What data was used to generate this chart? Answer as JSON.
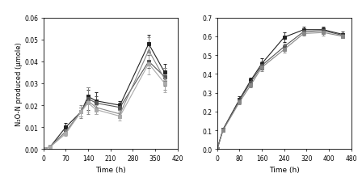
{
  "left": {
    "xlabel": "Time (h)",
    "ylabel": "N₂O-N produced (μmole)",
    "xlim": [
      0,
      420
    ],
    "ylim": [
      0,
      0.06
    ],
    "xticks": [
      0,
      70,
      140,
      210,
      280,
      350,
      420
    ],
    "yticks": [
      0,
      0.01,
      0.02,
      0.03,
      0.04,
      0.05,
      0.06
    ],
    "series": [
      {
        "x": [
          0,
          21,
          70,
          118,
          140,
          165,
          240,
          330,
          380
        ],
        "y": [
          0,
          0.001,
          0.01,
          0.017,
          0.024,
          0.022,
          0.02,
          0.048,
          0.035
        ],
        "yerr": [
          0,
          0.001,
          0.002,
          0.002,
          0.003,
          0.004,
          0.002,
          0.004,
          0.004
        ],
        "marker": "s",
        "filled": true,
        "color": "#222222",
        "linestyle": "-"
      },
      {
        "x": [
          0,
          21,
          70,
          118,
          140,
          165,
          240,
          330,
          380
        ],
        "y": [
          0,
          0.001,
          0.008,
          0.017,
          0.023,
          0.021,
          0.019,
          0.04,
          0.033
        ],
        "yerr": [
          0,
          0.001,
          0.001,
          0.002,
          0.005,
          0.003,
          0.002,
          0.003,
          0.004
        ],
        "marker": "s",
        "filled": true,
        "color": "#555555",
        "linestyle": "-"
      },
      {
        "x": [
          0,
          21,
          70,
          118,
          140,
          165,
          240,
          330,
          380
        ],
        "y": [
          0,
          0.001,
          0.008,
          0.017,
          0.022,
          0.019,
          0.016,
          0.045,
          0.032
        ],
        "yerr": [
          0,
          0.001,
          0.001,
          0.003,
          0.006,
          0.003,
          0.002,
          0.006,
          0.005
        ],
        "marker": "^",
        "filled": false,
        "color": "#888888",
        "linestyle": "-"
      },
      {
        "x": [
          0,
          21,
          70,
          118,
          140,
          165,
          240,
          330,
          380
        ],
        "y": [
          0,
          0.001,
          0.007,
          0.017,
          0.021,
          0.018,
          0.015,
          0.039,
          0.03
        ],
        "yerr": [
          0,
          0.001,
          0.001,
          0.002,
          0.004,
          0.002,
          0.002,
          0.005,
          0.004
        ],
        "marker": "s",
        "filled": true,
        "color": "#aaaaaa",
        "linestyle": "-"
      }
    ]
  },
  "right": {
    "xlabel": "Time (h)",
    "ylabel": "",
    "xlim": [
      0,
      480
    ],
    "ylim": [
      0,
      0.7
    ],
    "xticks": [
      0,
      80,
      160,
      240,
      320,
      400,
      480
    ],
    "yticks": [
      0,
      0.1,
      0.2,
      0.3,
      0.4,
      0.5,
      0.6,
      0.7
    ],
    "series": [
      {
        "x": [
          0,
          21,
          80,
          120,
          160,
          240,
          310,
          380,
          450
        ],
        "y": [
          0,
          0.105,
          0.265,
          0.365,
          0.455,
          0.595,
          0.635,
          0.635,
          0.61
        ],
        "yerr": [
          0,
          0.005,
          0.015,
          0.015,
          0.03,
          0.025,
          0.015,
          0.015,
          0.015
        ],
        "marker": "s",
        "filled": true,
        "color": "#222222",
        "linestyle": "-"
      },
      {
        "x": [
          0,
          21,
          80,
          120,
          160,
          240,
          310,
          380,
          450
        ],
        "y": [
          0,
          0.105,
          0.26,
          0.355,
          0.445,
          0.545,
          0.625,
          0.63,
          0.605
        ],
        "yerr": [
          0,
          0.005,
          0.01,
          0.01,
          0.02,
          0.015,
          0.01,
          0.015,
          0.01
        ],
        "marker": "s",
        "filled": true,
        "color": "#555555",
        "linestyle": "-"
      },
      {
        "x": [
          0,
          21,
          80,
          120,
          160,
          240,
          310,
          380,
          450
        ],
        "y": [
          0,
          0.1,
          0.25,
          0.34,
          0.435,
          0.53,
          0.615,
          0.62,
          0.6
        ],
        "yerr": [
          0,
          0.005,
          0.01,
          0.01,
          0.02,
          0.015,
          0.01,
          0.015,
          0.01
        ],
        "marker": "s",
        "filled": true,
        "color": "#888888",
        "linestyle": "-"
      }
    ]
  },
  "fig_width": 4.48,
  "fig_height": 2.26,
  "dpi": 100
}
